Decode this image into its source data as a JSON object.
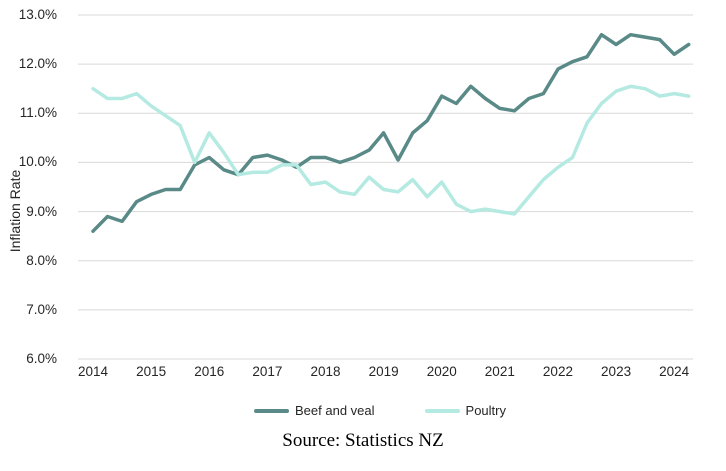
{
  "chart_data": {
    "type": "line",
    "title": "",
    "ylabel": "Inflation Rate",
    "xlabel": "",
    "ylim": [
      6.0,
      13.0
    ],
    "y_ticks": [
      6,
      7,
      8,
      9,
      10,
      11,
      12,
      13
    ],
    "y_tick_labels": [
      "6.0%",
      "7.0%",
      "8.0%",
      "9.0%",
      "10.0%",
      "11.0%",
      "12.0%",
      "13.0%"
    ],
    "x_tick_labels": [
      "2014",
      "2015",
      "2016",
      "2017",
      "2018",
      "2019",
      "2020",
      "2021",
      "2022",
      "2023",
      "2024"
    ],
    "x_interval": "quarterly",
    "x_range": "2014Q1-2024Q2",
    "grid": "horizontal",
    "legend_position": "bottom",
    "series": [
      {
        "name": "Beef and veal",
        "color": "#5a8a87",
        "values": [
          8.6,
          8.9,
          8.8,
          9.2,
          9.35,
          9.45,
          9.45,
          9.95,
          10.1,
          9.85,
          9.75,
          10.1,
          10.15,
          10.05,
          9.9,
          10.1,
          10.1,
          10.0,
          10.1,
          10.25,
          10.6,
          10.05,
          10.6,
          10.85,
          11.35,
          11.2,
          11.55,
          11.3,
          11.1,
          11.05,
          11.3,
          11.4,
          11.9,
          12.05,
          12.15,
          12.6,
          12.4,
          12.6,
          12.55,
          12.5,
          12.2,
          12.4
        ]
      },
      {
        "name": "Poultry",
        "color": "#b5eae2",
        "values": [
          11.5,
          11.3,
          11.3,
          11.4,
          11.15,
          10.95,
          10.75,
          10.0,
          10.6,
          10.2,
          9.75,
          9.8,
          9.8,
          9.95,
          9.95,
          9.55,
          9.6,
          9.4,
          9.35,
          9.7,
          9.45,
          9.4,
          9.65,
          9.3,
          9.6,
          9.15,
          9.0,
          9.05,
          9.0,
          8.95,
          9.3,
          9.65,
          9.9,
          10.1,
          10.8,
          11.2,
          11.45,
          11.55,
          11.5,
          11.35,
          11.4,
          11.35
        ]
      }
    ]
  },
  "source_note": "Source: Statistics NZ",
  "colors": {
    "background": "#ffffff",
    "gridline": "#d9d9d9",
    "text": "#262626"
  }
}
